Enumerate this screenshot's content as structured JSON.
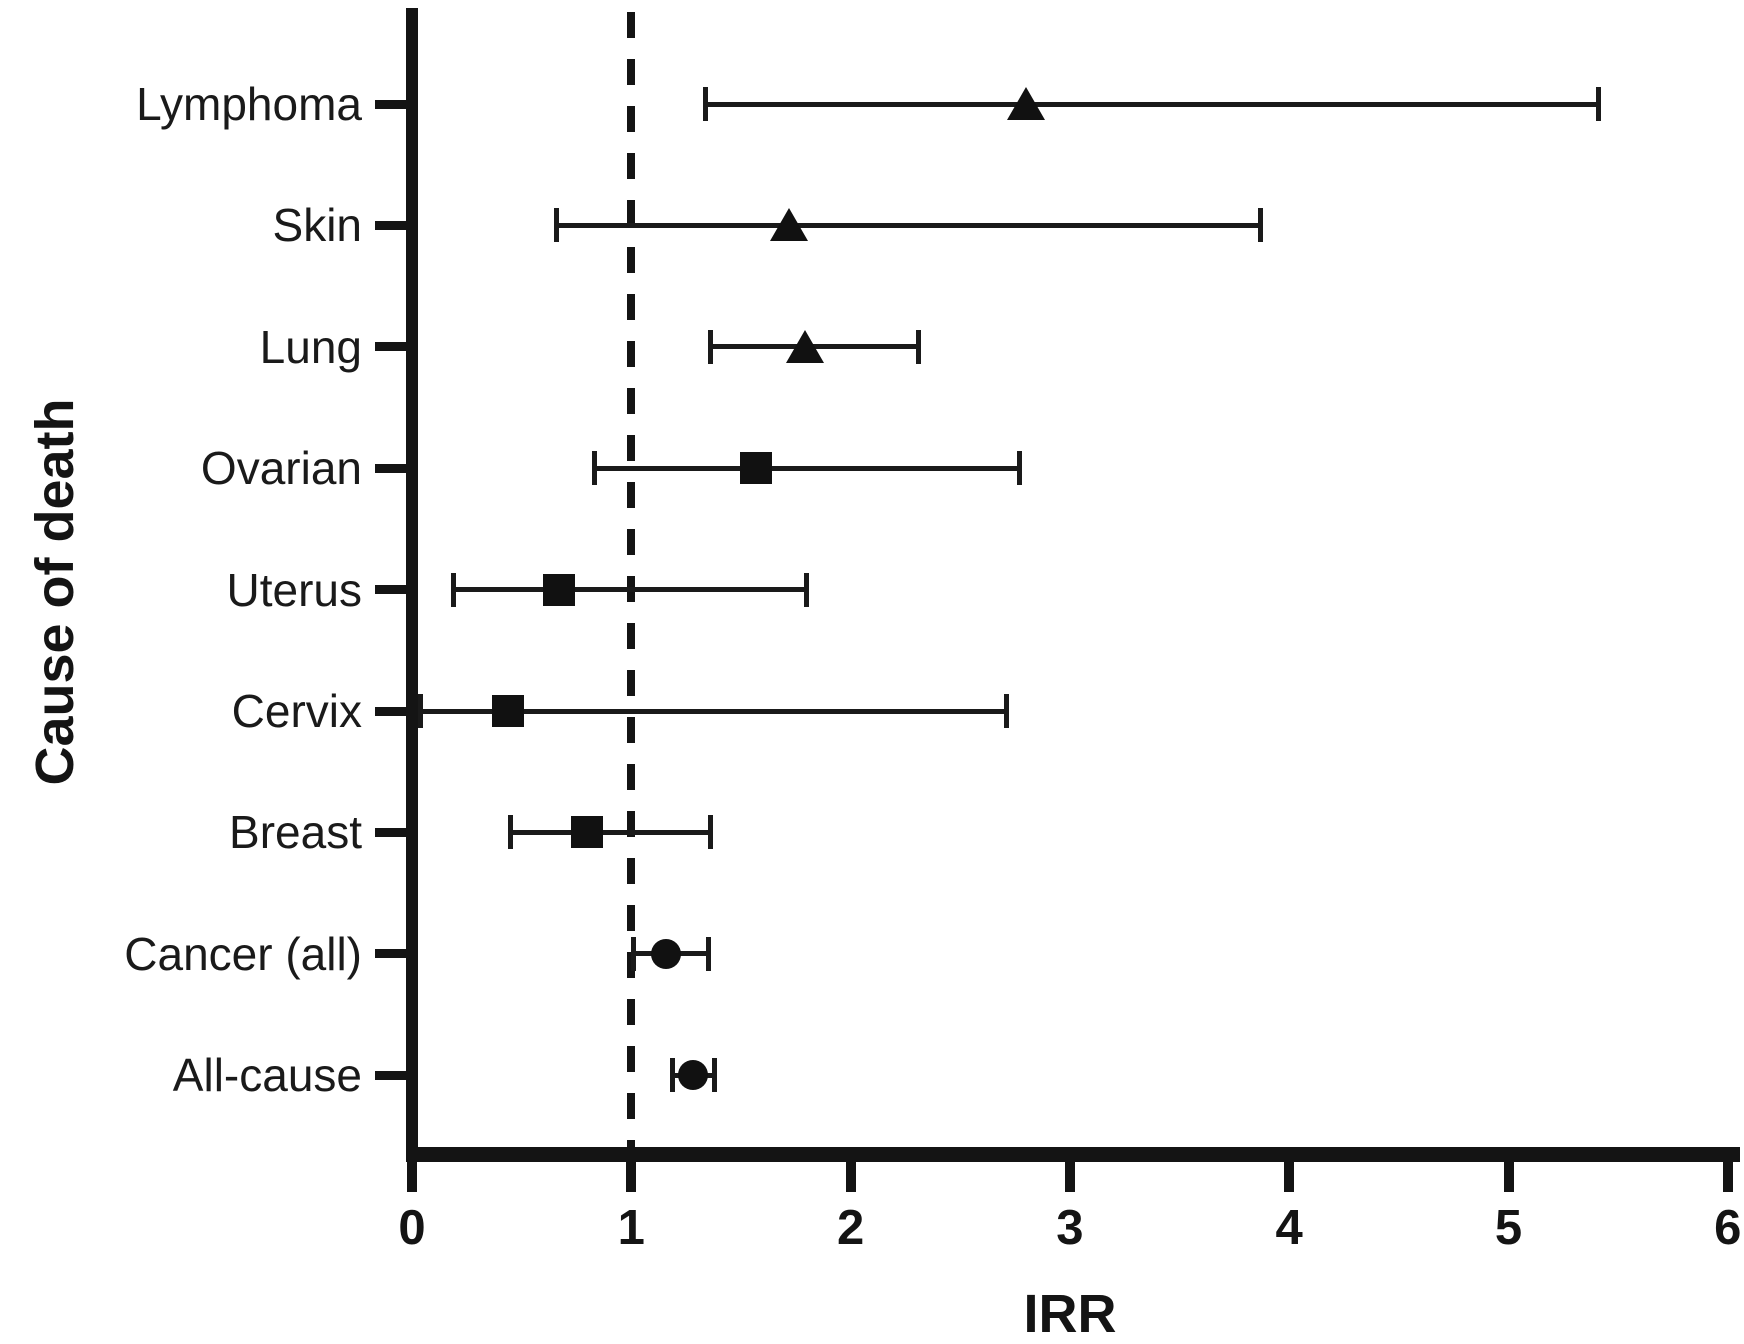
{
  "figure": {
    "background": "#ffffff",
    "ink": "#141414"
  },
  "chart_data": {
    "type": "scatter",
    "subtype": "forest-plot",
    "title": "",
    "xlabel": "IRR",
    "ylabel": "Cause of death",
    "xlim": [
      0,
      6
    ],
    "xticks": [
      "0",
      "1",
      "2",
      "3",
      "4",
      "5",
      "6"
    ],
    "grid": false,
    "legend": false,
    "reference_line": {
      "x": 1,
      "style": "dashed"
    },
    "rows": [
      {
        "label": "Lymphoma",
        "marker": "triangle",
        "irr": 2.8,
        "ci_lower": 1.34,
        "ci_upper": 5.41
      },
      {
        "label": "Skin",
        "marker": "triangle",
        "irr": 1.72,
        "ci_lower": 0.66,
        "ci_upper": 3.87
      },
      {
        "label": "Lung",
        "marker": "triangle",
        "irr": 1.79,
        "ci_lower": 1.36,
        "ci_upper": 2.31
      },
      {
        "label": "Ovarian",
        "marker": "square",
        "irr": 1.57,
        "ci_lower": 0.83,
        "ci_upper": 2.77
      },
      {
        "label": "Uterus",
        "marker": "square",
        "irr": 0.67,
        "ci_lower": 0.19,
        "ci_upper": 1.8
      },
      {
        "label": "Cervix",
        "marker": "square",
        "irr": 0.44,
        "ci_lower": 0.04,
        "ci_upper": 2.71
      },
      {
        "label": "Breast",
        "marker": "square",
        "irr": 0.8,
        "ci_lower": 0.45,
        "ci_upper": 1.36
      },
      {
        "label": "Cancer (all)",
        "marker": "circle",
        "irr": 1.16,
        "ci_lower": 1.01,
        "ci_upper": 1.35
      },
      {
        "label": "All-cause",
        "marker": "circle",
        "irr": 1.28,
        "ci_lower": 1.19,
        "ci_upper": 1.38
      }
    ]
  }
}
